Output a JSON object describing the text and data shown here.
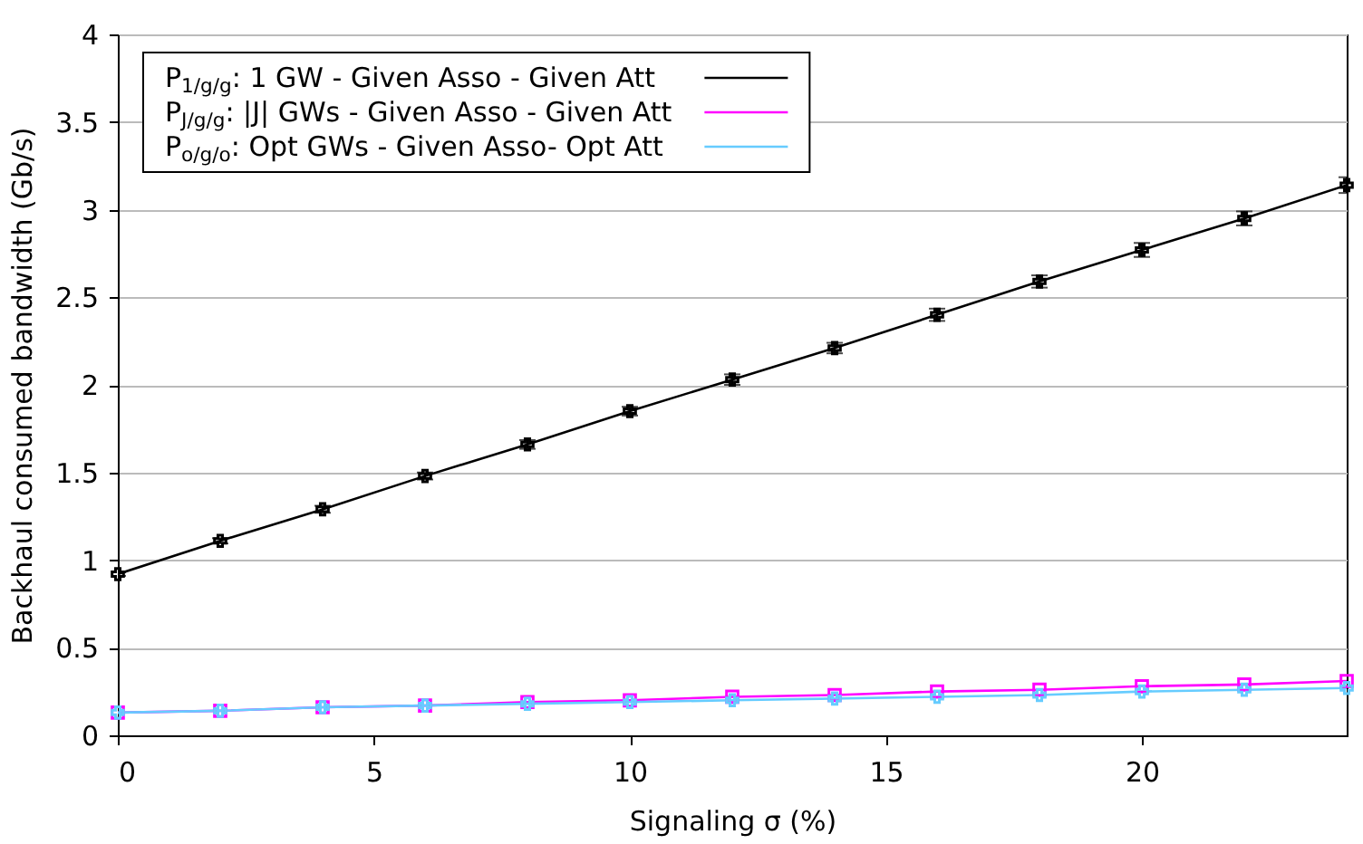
{
  "chart_data": {
    "type": "line",
    "xlabel": "Signaling σ (%)",
    "ylabel": "Backhaul consumed bandwidth (Gb/s)",
    "x": [
      0,
      2,
      4,
      6,
      8,
      10,
      12,
      14,
      16,
      18,
      20,
      22,
      24
    ],
    "series": [
      {
        "name": "P$_{1/g/g}$: 1 GW - Given Asso - Given Att",
        "color": "#000000",
        "marker": "cross",
        "values": [
          0.92,
          1.11,
          1.29,
          1.48,
          1.66,
          1.85,
          2.03,
          2.21,
          2.4,
          2.59,
          2.77,
          2.95,
          3.14
        ],
        "errors": [
          0.01,
          0.015,
          0.02,
          0.02,
          0.025,
          0.025,
          0.03,
          0.03,
          0.035,
          0.035,
          0.04,
          0.04,
          0.045
        ]
      },
      {
        "name": "P$_{J/g/g}$: |J| GWs - Given Asso - Given Att",
        "color": "#ff00ff",
        "marker": "square",
        "values": [
          0.13,
          0.14,
          0.16,
          0.17,
          0.19,
          0.2,
          0.22,
          0.23,
          0.25,
          0.26,
          0.28,
          0.29,
          0.31
        ]
      },
      {
        "name": "P$_{o/g/o}$: Opt GWs - Given Asso- Opt Att",
        "color": "#66ccff",
        "marker": "cross",
        "values": [
          0.13,
          0.14,
          0.16,
          0.17,
          0.18,
          0.19,
          0.2,
          0.21,
          0.22,
          0.23,
          0.25,
          0.26,
          0.27
        ]
      }
    ],
    "xlim": [
      0,
      24
    ],
    "xticks": [
      0,
      5,
      10,
      15,
      20
    ],
    "ylim": [
      0,
      4
    ],
    "yticks": [
      0,
      0.5,
      1,
      1.5,
      2,
      2.5,
      3,
      3.5,
      4
    ],
    "grid": "y",
    "legend": "top left",
    "line_style": "solid"
  }
}
